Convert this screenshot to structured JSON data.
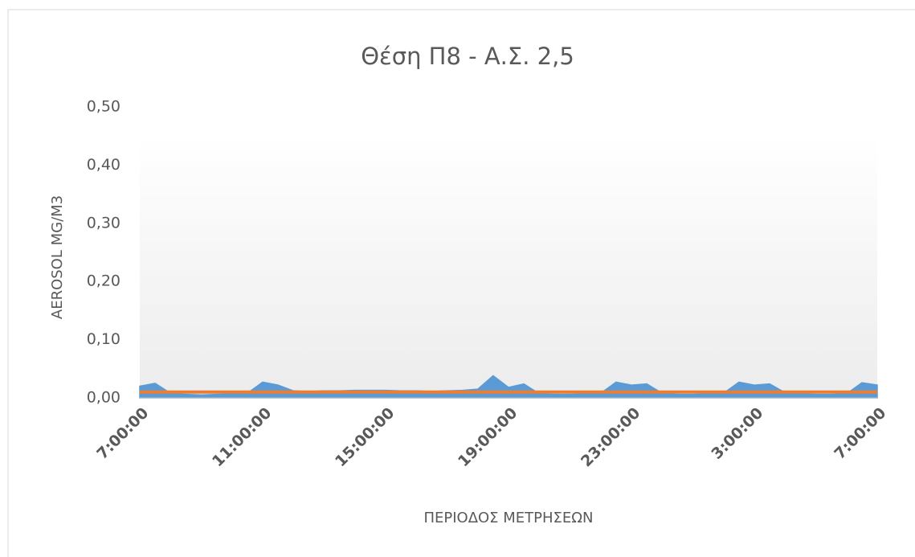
{
  "chart_data": {
    "type": "area",
    "title": "Θέση Π8 - Α.Σ. 2,5",
    "ylabel": "AEROSOL MG/M3",
    "xlabel": "ΠΕΡΙΟΔΟΣ ΜΕΤΡΗΣΕΩΝ",
    "categories": [
      "7:00:00",
      null,
      null,
      null,
      null,
      null,
      null,
      null,
      "11:00:00",
      null,
      null,
      null,
      null,
      null,
      null,
      null,
      "15:00:00",
      null,
      null,
      null,
      null,
      null,
      null,
      null,
      "19:00:00",
      null,
      null,
      null,
      null,
      null,
      null,
      null,
      "23:00:00",
      null,
      null,
      null,
      null,
      null,
      null,
      null,
      "3:00:00",
      null,
      null,
      null,
      null,
      null,
      null,
      null,
      "7:00:00"
    ],
    "series": [
      {
        "color": "#5b9bd5",
        "kind": "area",
        "values": [
          0.02,
          0.025,
          0.008,
          0.006,
          0.005,
          0.006,
          0.007,
          0.008,
          0.027,
          0.022,
          0.012,
          0.011,
          0.012,
          0.012,
          0.013,
          0.013,
          0.013,
          0.012,
          0.012,
          0.011,
          0.012,
          0.013,
          0.015,
          0.038,
          0.018,
          0.024,
          0.007,
          0.006,
          0.006,
          0.007,
          0.008,
          0.027,
          0.022,
          0.024,
          0.008,
          0.006,
          0.006,
          0.007,
          0.008,
          0.027,
          0.022,
          0.024,
          0.009,
          0.007,
          0.006,
          0.006,
          0.007,
          0.026,
          0.022
        ]
      },
      {
        "color": "#ed7d31",
        "kind": "line",
        "values": [
          0.01,
          0.01,
          0.01,
          0.01,
          0.01,
          0.01,
          0.01,
          0.01,
          0.01,
          0.01,
          0.01,
          0.01,
          0.01,
          0.01,
          0.01,
          0.01,
          0.01,
          0.01,
          0.01,
          0.01,
          0.01,
          0.01,
          0.01,
          0.01,
          0.01,
          0.01,
          0.01,
          0.01,
          0.01,
          0.01,
          0.01,
          0.01,
          0.01,
          0.01,
          0.01,
          0.01,
          0.01,
          0.01,
          0.01,
          0.01,
          0.01,
          0.01,
          0.01,
          0.01,
          0.01,
          0.01,
          0.01,
          0.01,
          0.01
        ]
      }
    ],
    "ylim": [
      0,
      0.5
    ],
    "yticks": [
      {
        "value": 0,
        "label": "0,00"
      },
      {
        "value": 0.1,
        "label": "0,10"
      },
      {
        "value": 0.2,
        "label": "0,20"
      },
      {
        "value": 0.3,
        "label": "0,30"
      },
      {
        "value": 0.4,
        "label": "0,40"
      },
      {
        "value": 0.5,
        "label": "0,50"
      }
    ],
    "grid": false
  }
}
